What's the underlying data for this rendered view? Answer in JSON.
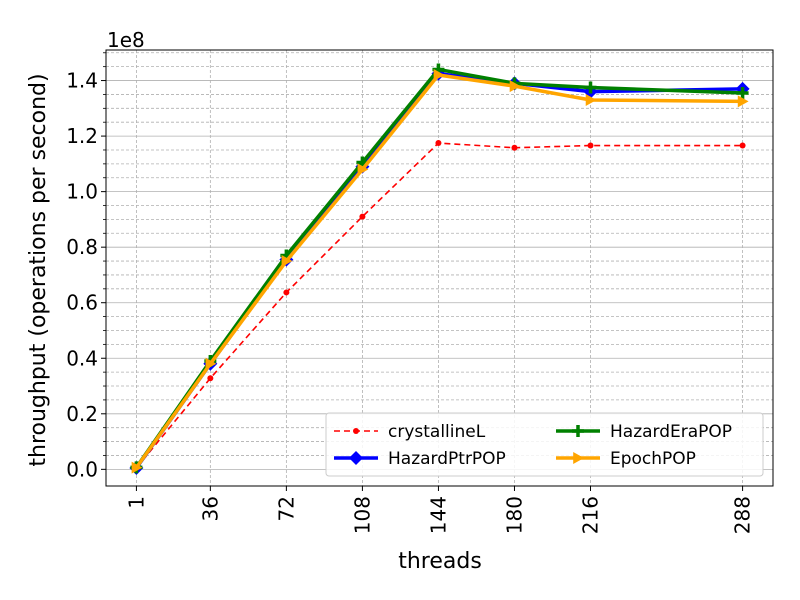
{
  "chart_data": {
    "type": "line",
    "xlabel": "threads",
    "ylabel": "throughput (operations per second)",
    "y_multiplier": "1e8",
    "x": [
      1,
      36,
      72,
      108,
      144,
      180,
      216,
      288
    ],
    "x_tick_labels": [
      "1",
      "36",
      "72",
      "108",
      "144",
      "180",
      "216",
      "288"
    ],
    "y_tick_values": [
      0,
      20000000,
      40000000,
      60000000,
      80000000,
      100000000,
      120000000,
      140000000
    ],
    "y_tick_labels": [
      "0.0",
      "0.2",
      "0.4",
      "0.6",
      "0.8",
      "1.0",
      "1.2",
      "1.4"
    ],
    "ylim": [
      -6000000,
      151000000
    ],
    "xlim": [
      -13.4,
      302.4
    ],
    "grid": true,
    "legend_placement": "lower-right",
    "series": [
      {
        "name": "crystallineL",
        "color": "#ff0000",
        "style": "dashed",
        "marker": "circle",
        "values": [
          500000,
          32800000,
          63700000,
          91000000,
          117500000,
          115800000,
          116600000,
          116600000
        ]
      },
      {
        "name": "HazardPtrPOP",
        "color": "#0000ff",
        "style": "solid",
        "marker": "diamond",
        "values": [
          500000,
          38000000,
          75500000,
          109000000,
          142500000,
          139000000,
          136000000,
          137000000
        ]
      },
      {
        "name": "HazardEraPOP",
        "color": "#008000",
        "style": "solid",
        "marker": "plus",
        "values": [
          700000,
          39000000,
          77000000,
          110500000,
          144000000,
          139000000,
          137500000,
          135500000
        ]
      },
      {
        "name": "EpochPOP",
        "color": "#ffa500",
        "style": "solid",
        "marker": "triangle-right",
        "values": [
          600000,
          38000000,
          75000000,
          108000000,
          142000000,
          138000000,
          133000000,
          132500000
        ]
      }
    ]
  }
}
